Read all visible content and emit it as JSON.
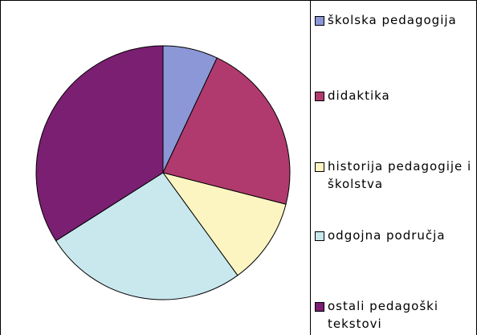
{
  "chart_data": {
    "type": "pie",
    "categories": [
      "školska pedagogija",
      "didaktika",
      "historija pedagogije i školstva",
      "odgojna područja",
      "ostali pedagoški tekstovi"
    ],
    "values": [
      7,
      22,
      11,
      26,
      34
    ],
    "colors": [
      "#8b97d6",
      "#b03a6e",
      "#fcf5c2",
      "#c8e8ee",
      "#7b1f72"
    ]
  }
}
